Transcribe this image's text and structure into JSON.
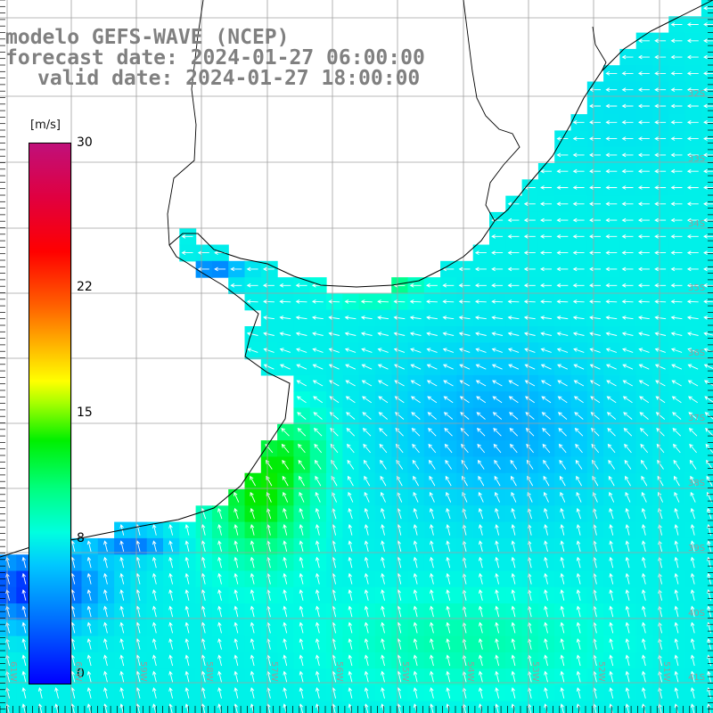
{
  "title": {
    "model": "modelo GEFS-WAVE (NCEP)",
    "forecast": "forecast date: 2024-01-27 06:00:00",
    "valid": "valid date: 2024-01-27 18:00:00"
  },
  "colorbar": {
    "unit": "[m/s]",
    "ticks": [
      {
        "value": 30,
        "label": "30"
      },
      {
        "value": 22,
        "label": "22"
      },
      {
        "value": 15,
        "label": "15"
      },
      {
        "value": 8,
        "label": "8"
      },
      {
        "value": 0,
        "label": "0"
      }
    ],
    "range": [
      0,
      30
    ]
  },
  "map": {
    "lat_labels": [
      "32S",
      "33S",
      "34S",
      "35S",
      "36S",
      "37S",
      "38S",
      "39S",
      "40S",
      "41S"
    ],
    "lon_labels": [
      "61W",
      "60W",
      "59W",
      "58W",
      "57W",
      "56W",
      "55W",
      "54W",
      "53W",
      "52W",
      "51W"
    ],
    "colors": {
      "land": "#ffffff",
      "coast": "#000000",
      "grid": "#a0a0a0",
      "arrow": "#ffffff"
    }
  }
}
